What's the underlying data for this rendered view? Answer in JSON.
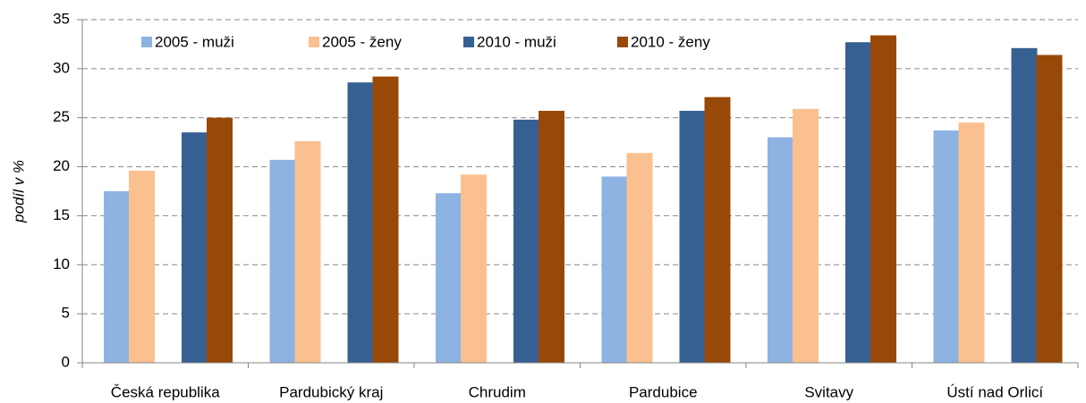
{
  "chart_data": {
    "type": "bar",
    "y_label": "podíl v %",
    "categories": [
      "Česká republika",
      "Pardubický kraj",
      "Chrudim",
      "Pardubice",
      "Svitavy",
      "Ústí nad Orlicí"
    ],
    "series": [
      {
        "name": "2005 - muži",
        "color": "#8db3e2",
        "values": [
          17.5,
          20.7,
          17.3,
          19.0,
          23.0,
          23.7
        ]
      },
      {
        "name": "2005 - ženy",
        "color": "#fac090",
        "values": [
          19.6,
          22.6,
          19.2,
          21.4,
          25.9,
          24.5
        ]
      },
      {
        "name": "2010 - muži",
        "color": "#376092",
        "values": [
          23.5,
          28.6,
          24.8,
          25.7,
          32.7,
          32.1
        ]
      },
      {
        "name": "2010 - ženy",
        "color": "#984807",
        "values": [
          25.0,
          29.2,
          25.7,
          27.1,
          33.4,
          31.4
        ]
      }
    ],
    "ylim": [
      0,
      35
    ],
    "yticks": [
      0,
      5,
      10,
      15,
      20,
      25,
      30,
      35
    ],
    "grid": true,
    "legend": "top-left"
  }
}
